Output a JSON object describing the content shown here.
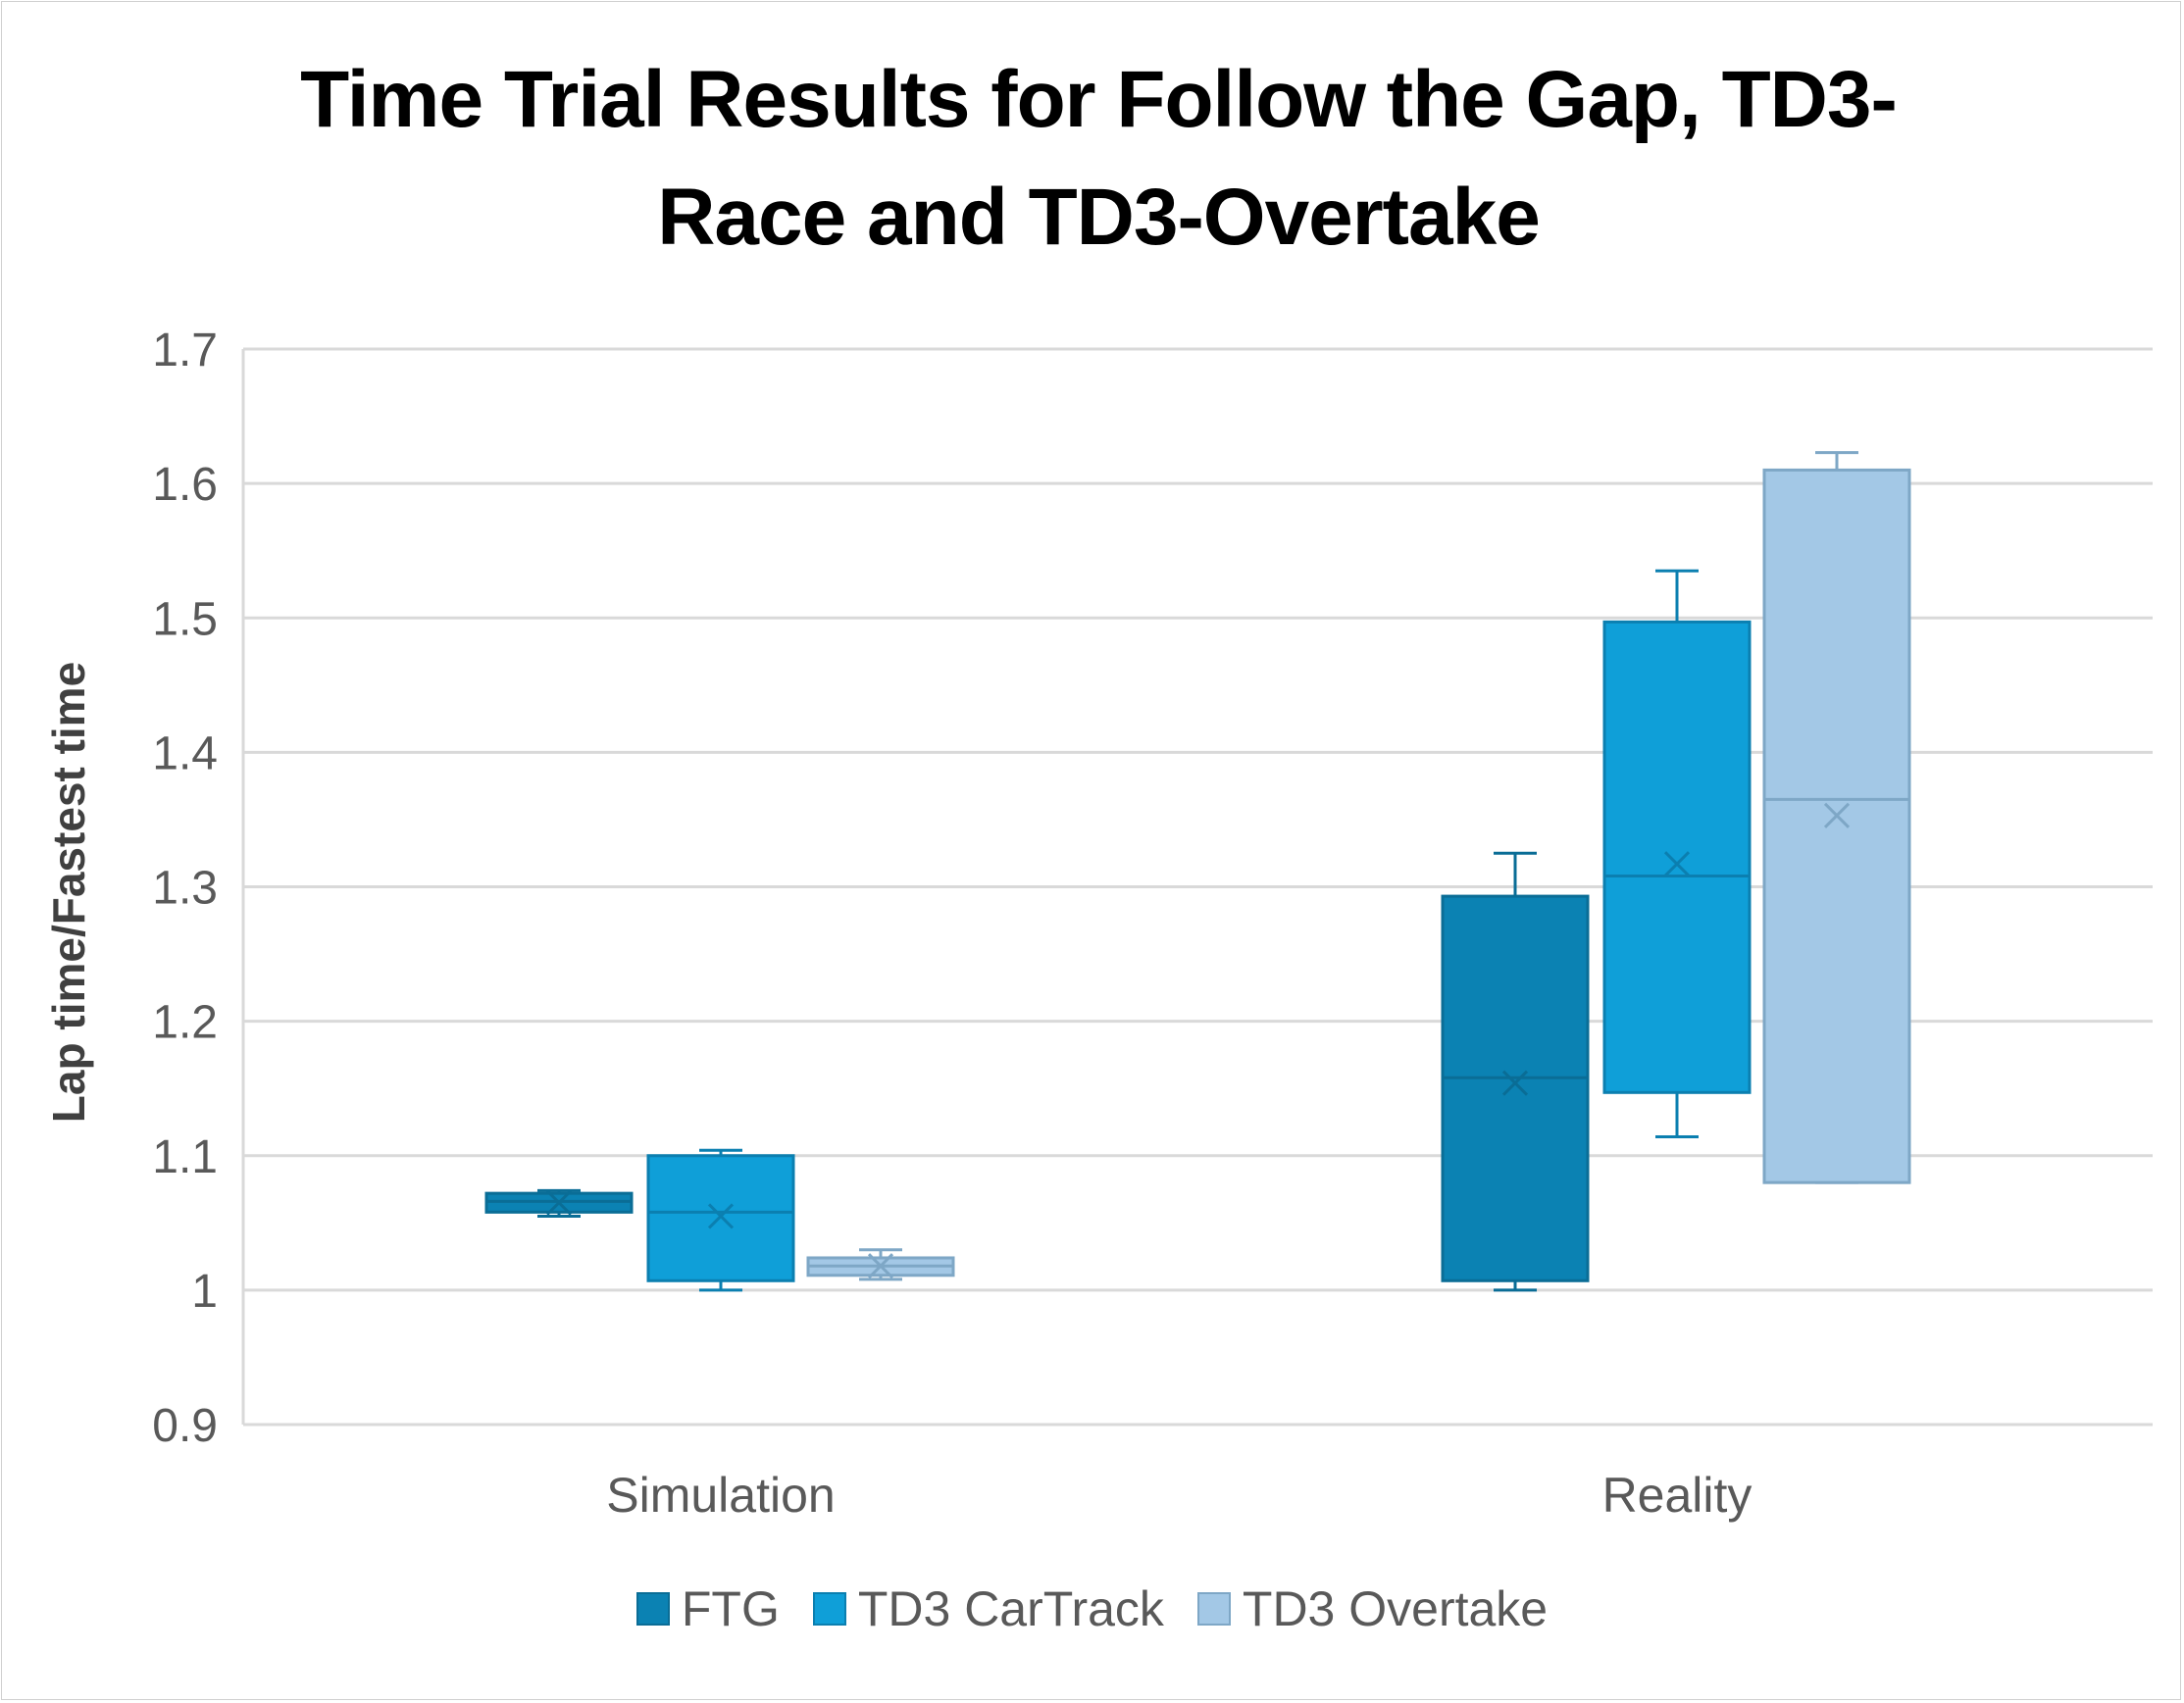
{
  "chart_data": {
    "type": "boxplot",
    "title_lines": [
      "Time Trial Results for Follow the Gap, TD3-",
      "Race and TD3-Overtake"
    ],
    "xlabel": "",
    "ylabel": "Lap time/Fastest time",
    "ylim": [
      0.9,
      1.7
    ],
    "yticks": [
      "0.9",
      "1",
      "1.1",
      "1.2",
      "1.3",
      "1.4",
      "1.5",
      "1.6",
      "1.7"
    ],
    "ytick_values": [
      0.9,
      1.0,
      1.1,
      1.2,
      1.3,
      1.4,
      1.5,
      1.6,
      1.7
    ],
    "categories": [
      "Simulation",
      "Reality"
    ],
    "grid": true,
    "legend_position": "bottom",
    "series": [
      {
        "name": "FTG",
        "fill": "#0b82b3",
        "stroke": "#0a6d96",
        "boxes": [
          {
            "min": 1.055,
            "q1": 1.058,
            "median": 1.066,
            "q3": 1.072,
            "max": 1.074,
            "mean": 1.065
          },
          {
            "min": 1.0,
            "q1": 1.007,
            "median": 1.158,
            "q3": 1.293,
            "max": 1.325,
            "mean": 1.154
          }
        ]
      },
      {
        "name": "TD3 CarTrack",
        "fill": "#0f9fd8",
        "stroke": "#0b7fb0",
        "boxes": [
          {
            "min": 1.0,
            "q1": 1.007,
            "median": 1.058,
            "q3": 1.1,
            "max": 1.104,
            "mean": 1.055
          },
          {
            "min": 1.114,
            "q1": 1.147,
            "median": 1.308,
            "q3": 1.497,
            "max": 1.535,
            "mean": 1.317
          }
        ]
      },
      {
        "name": "TD3 Overtake",
        "fill": "#a3c8e6",
        "stroke": "#7ea7c6",
        "boxes": [
          {
            "min": 1.008,
            "q1": 1.011,
            "median": 1.018,
            "q3": 1.024,
            "max": 1.03,
            "mean": 1.018
          },
          {
            "min": 1.08,
            "q1": 1.08,
            "median": 1.365,
            "q3": 1.61,
            "max": 1.623,
            "mean": 1.353
          }
        ]
      }
    ]
  }
}
